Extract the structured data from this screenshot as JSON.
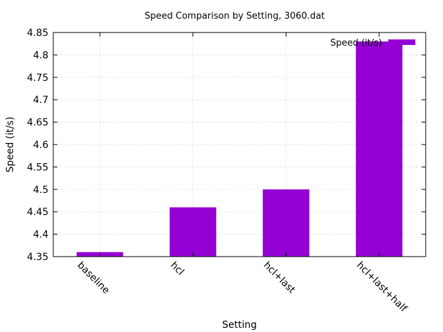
{
  "chart_data": {
    "type": "bar",
    "title": "Speed Comparison by Setting, 3060.dat",
    "xlabel": "Setting",
    "ylabel": "Speed (it/s)",
    "categories": [
      "baseline",
      "hcl",
      "hcl+last",
      "hcl+last+half"
    ],
    "series": [
      {
        "name": "Speed (it/s)",
        "values": [
          4.36,
          4.46,
          4.5,
          4.83
        ],
        "color": "#9400d3"
      }
    ],
    "ylim": [
      4.35,
      4.85
    ],
    "yticks": [
      "4.35",
      "4.4",
      "4.45",
      "4.5",
      "4.55",
      "4.6",
      "4.65",
      "4.7",
      "4.75",
      "4.8",
      "4.85"
    ],
    "grid": true,
    "legend_position": "top-right"
  }
}
